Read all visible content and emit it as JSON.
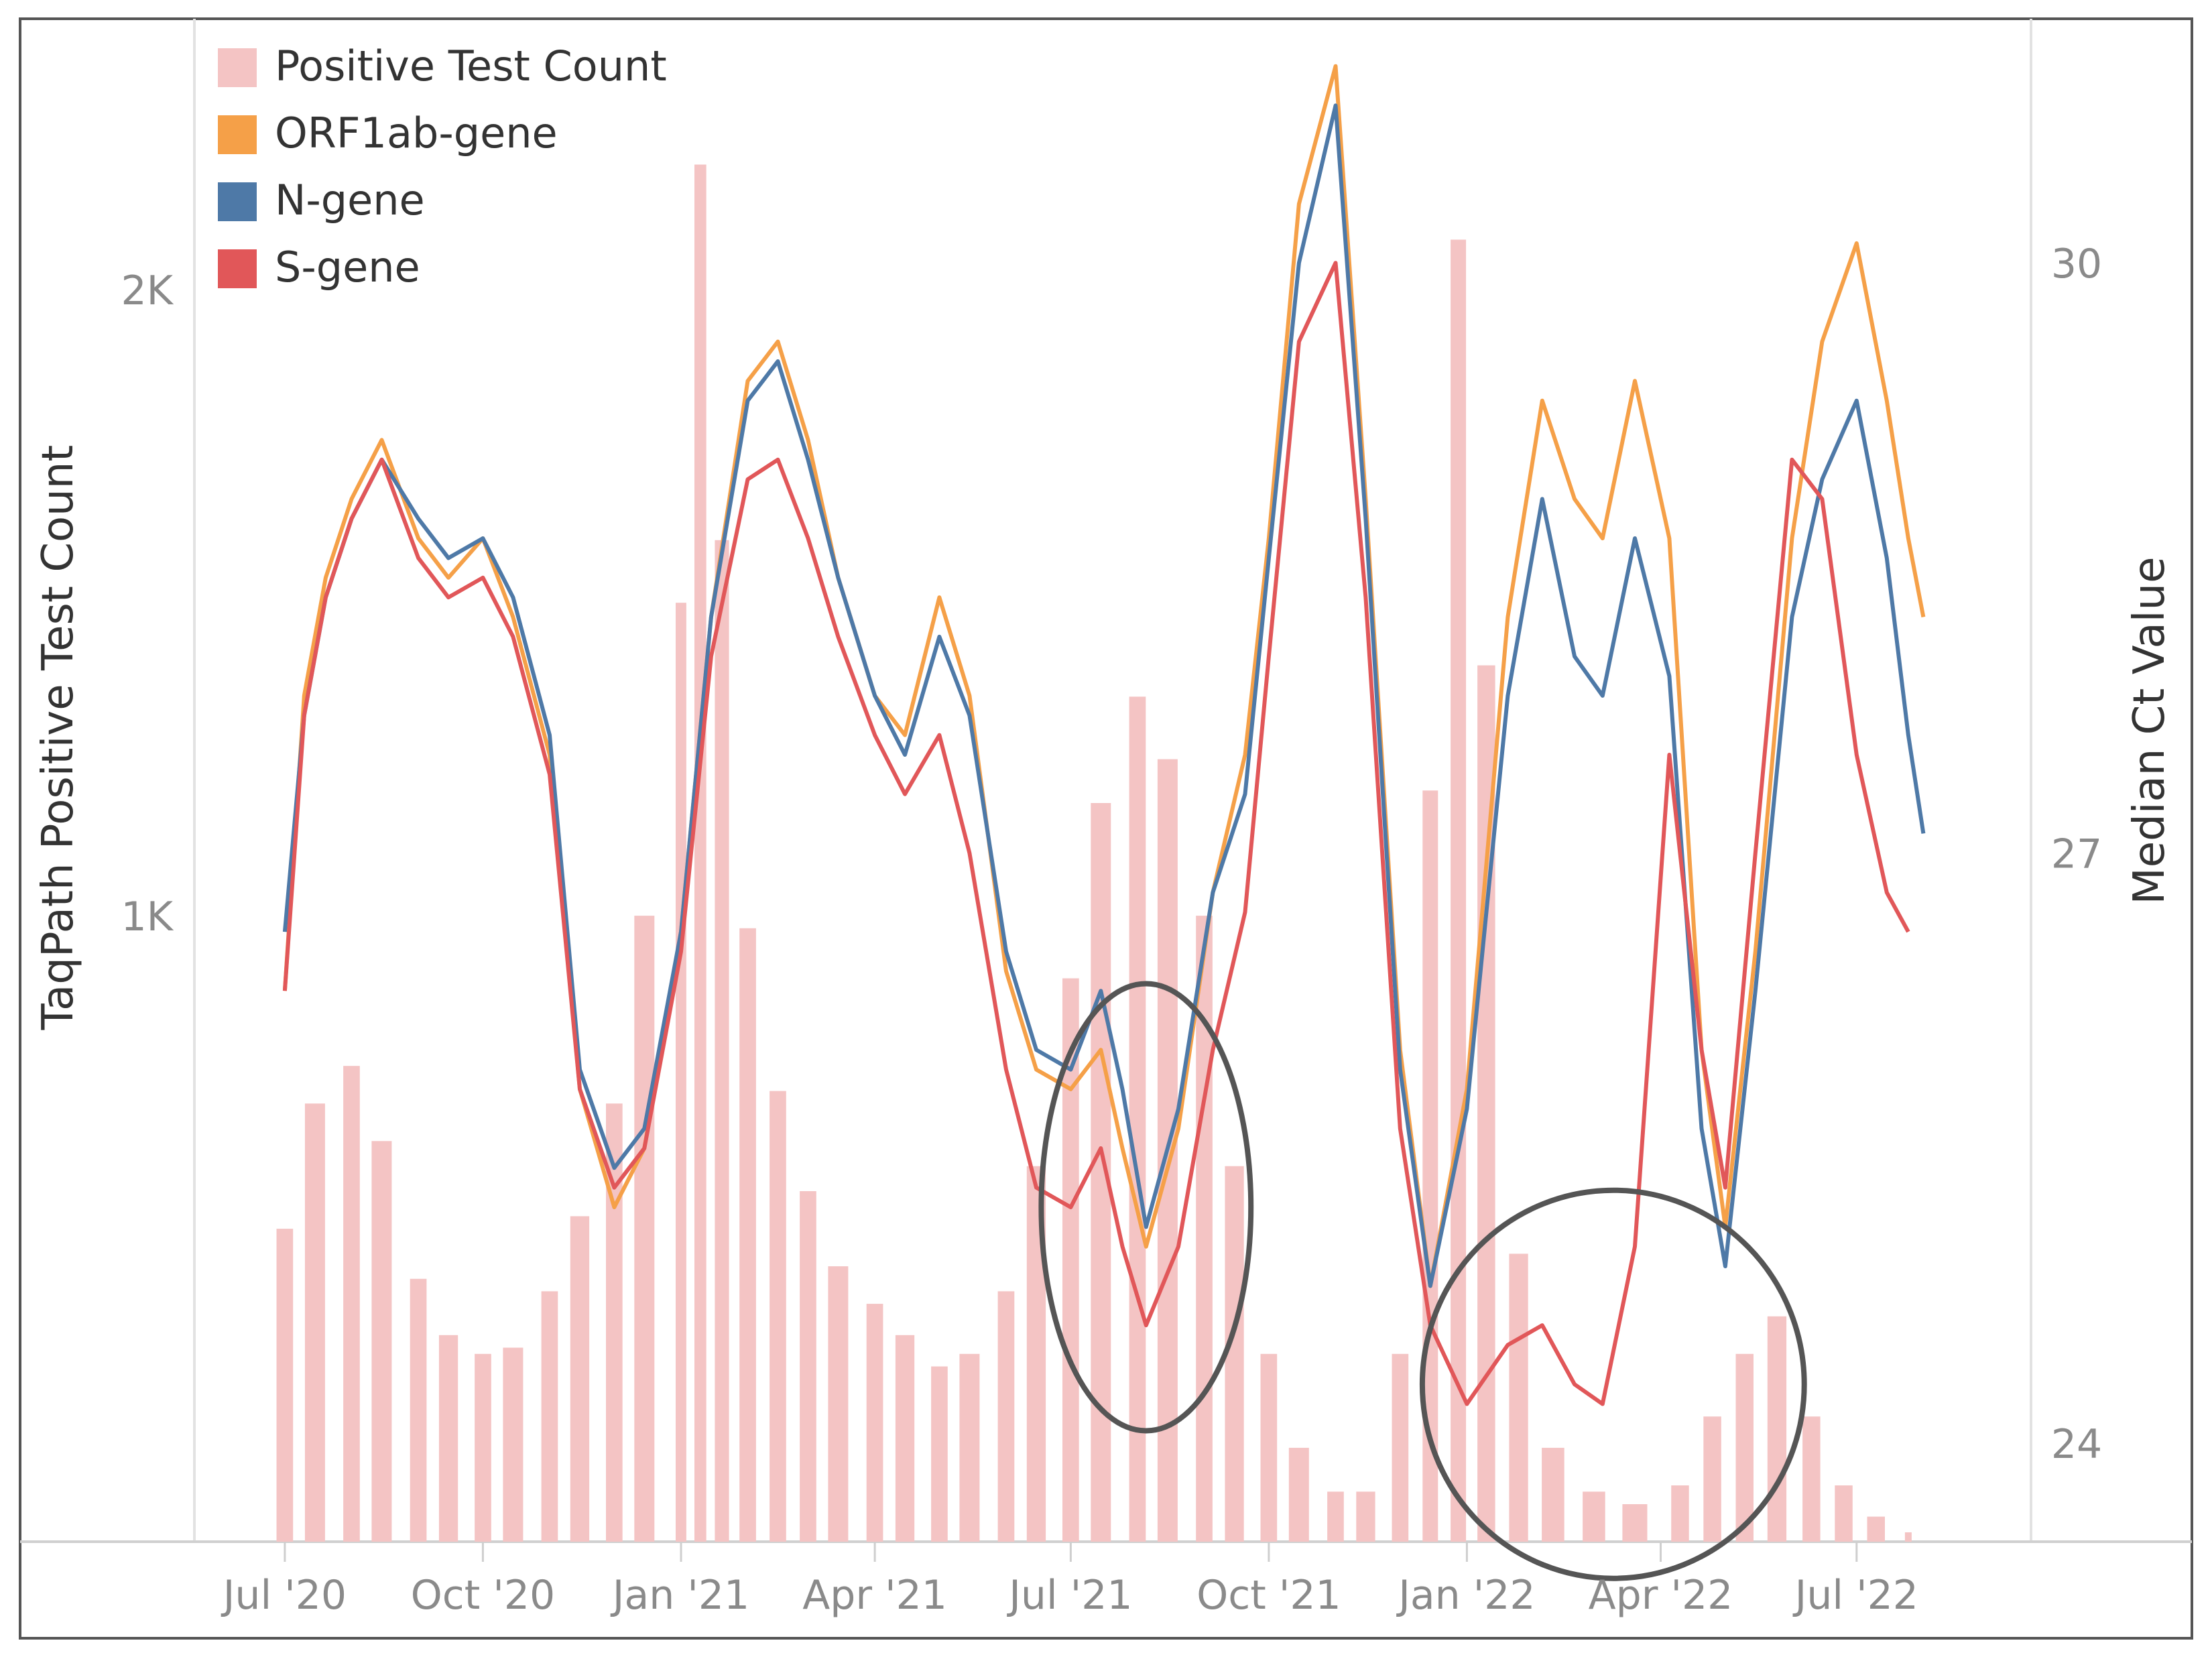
{
  "chart_data": {
    "type": "line",
    "title": "",
    "xlabel": "",
    "ylabel_left": "TaqPath Positive Test Count",
    "ylabel_right": "Median Ct Value",
    "x_ticks": [
      "Jul '20",
      "Oct '20",
      "Jan '21",
      "Apr '21",
      "Jul '21",
      "Oct '21",
      "Jan '22",
      "Apr '22",
      "Jul '22"
    ],
    "y_left_ticks": [
      {
        "value": 1000,
        "label": "1K"
      },
      {
        "value": 2000,
        "label": "2K"
      }
    ],
    "y_right_ticks": [
      {
        "value": 24,
        "label": "24"
      },
      {
        "value": 27,
        "label": "27"
      },
      {
        "value": 30,
        "label": "30"
      }
    ],
    "y_left_range": [
      0,
      2420
    ],
    "y_right_range": [
      23.5,
      31.2
    ],
    "x_range": [
      "2020-05-20",
      "2022-09-20"
    ],
    "grid": false,
    "legend_position": "top-left",
    "bar_series": {
      "name": "Positive Test Count",
      "color": "#f4c4c4",
      "points": [
        [
          "2020-07-01",
          500
        ],
        [
          "2020-07-15",
          700
        ],
        [
          "2020-08-01",
          760
        ],
        [
          "2020-08-15",
          640
        ],
        [
          "2020-09-01",
          420
        ],
        [
          "2020-09-15",
          330
        ],
        [
          "2020-10-01",
          300
        ],
        [
          "2020-10-15",
          310
        ],
        [
          "2020-11-01",
          400
        ],
        [
          "2020-11-15",
          520
        ],
        [
          "2020-12-01",
          700
        ],
        [
          "2020-12-15",
          1000
        ],
        [
          "2021-01-01",
          1500
        ],
        [
          "2021-01-10",
          2200
        ],
        [
          "2021-01-20",
          1600
        ],
        [
          "2021-02-01",
          980
        ],
        [
          "2021-02-15",
          720
        ],
        [
          "2021-03-01",
          560
        ],
        [
          "2021-03-15",
          440
        ],
        [
          "2021-04-01",
          380
        ],
        [
          "2021-04-15",
          330
        ],
        [
          "2021-05-01",
          280
        ],
        [
          "2021-05-15",
          300
        ],
        [
          "2021-06-01",
          400
        ],
        [
          "2021-06-15",
          600
        ],
        [
          "2021-07-01",
          900
        ],
        [
          "2021-07-15",
          1180
        ],
        [
          "2021-08-01",
          1350
        ],
        [
          "2021-08-15",
          1250
        ],
        [
          "2021-09-01",
          1000
        ],
        [
          "2021-09-15",
          600
        ],
        [
          "2021-10-01",
          300
        ],
        [
          "2021-10-15",
          150
        ],
        [
          "2021-11-01",
          80
        ],
        [
          "2021-11-15",
          80
        ],
        [
          "2021-12-01",
          300
        ],
        [
          "2021-12-15",
          1200
        ],
        [
          "2021-12-28",
          2080
        ],
        [
          "2022-01-10",
          1400
        ],
        [
          "2022-01-25",
          460
        ],
        [
          "2022-02-10",
          150
        ],
        [
          "2022-03-01",
          80
        ],
        [
          "2022-03-20",
          60
        ],
        [
          "2022-04-10",
          90
        ],
        [
          "2022-04-25",
          200
        ],
        [
          "2022-05-10",
          300
        ],
        [
          "2022-05-25",
          360
        ],
        [
          "2022-06-10",
          200
        ],
        [
          "2022-06-25",
          90
        ],
        [
          "2022-07-10",
          40
        ],
        [
          "2022-07-25",
          15
        ]
      ]
    },
    "series": [
      {
        "name": "ORF1ab-gene",
        "color": "#f5a048",
        "points": [
          [
            "2020-07-01",
            26.3
          ],
          [
            "2020-07-10",
            27.8
          ],
          [
            "2020-07-20",
            28.4
          ],
          [
            "2020-08-01",
            28.8
          ],
          [
            "2020-08-15",
            29.1
          ],
          [
            "2020-09-01",
            28.6
          ],
          [
            "2020-09-15",
            28.4
          ],
          [
            "2020-10-01",
            28.6
          ],
          [
            "2020-10-15",
            28.2
          ],
          [
            "2020-11-01",
            27.5
          ],
          [
            "2020-11-15",
            25.8
          ],
          [
            "2020-12-01",
            25.2
          ],
          [
            "2020-12-15",
            25.5
          ],
          [
            "2021-01-01",
            26.6
          ],
          [
            "2021-01-15",
            28.2
          ],
          [
            "2021-02-01",
            29.4
          ],
          [
            "2021-02-15",
            29.6
          ],
          [
            "2021-03-01",
            29.1
          ],
          [
            "2021-03-15",
            28.4
          ],
          [
            "2021-04-01",
            27.8
          ],
          [
            "2021-04-15",
            27.6
          ],
          [
            "2021-05-01",
            28.3
          ],
          [
            "2021-05-15",
            27.8
          ],
          [
            "2021-06-01",
            26.4
          ],
          [
            "2021-06-15",
            25.9
          ],
          [
            "2021-07-01",
            25.8
          ],
          [
            "2021-07-15",
            26.0
          ],
          [
            "2021-07-25",
            25.5
          ],
          [
            "2021-08-05",
            25.0
          ],
          [
            "2021-08-20",
            25.6
          ],
          [
            "2021-09-05",
            26.8
          ],
          [
            "2021-09-20",
            27.5
          ],
          [
            "2021-10-01",
            28.6
          ],
          [
            "2021-10-15",
            30.3
          ],
          [
            "2021-11-01",
            31.0
          ],
          [
            "2021-11-15",
            28.8
          ],
          [
            "2021-12-01",
            26.0
          ],
          [
            "2021-12-15",
            24.8
          ],
          [
            "2022-01-01",
            25.8
          ],
          [
            "2022-01-20",
            28.2
          ],
          [
            "2022-02-05",
            29.3
          ],
          [
            "2022-02-20",
            28.8
          ],
          [
            "2022-03-05",
            28.6
          ],
          [
            "2022-03-20",
            29.4
          ],
          [
            "2022-04-05",
            28.6
          ],
          [
            "2022-04-20",
            26.0
          ],
          [
            "2022-05-01",
            25.1
          ],
          [
            "2022-05-15",
            26.5
          ],
          [
            "2022-06-01",
            28.6
          ],
          [
            "2022-06-15",
            29.6
          ],
          [
            "2022-07-01",
            30.1
          ],
          [
            "2022-07-15",
            29.3
          ],
          [
            "2022-07-25",
            28.6
          ],
          [
            "2022-08-01",
            28.2
          ]
        ]
      },
      {
        "name": "N-gene",
        "color": "#4e79a7",
        "points": [
          [
            "2020-07-01",
            26.6
          ],
          [
            "2020-07-10",
            27.7
          ],
          [
            "2020-07-20",
            28.3
          ],
          [
            "2020-08-01",
            28.7
          ],
          [
            "2020-08-15",
            29.0
          ],
          [
            "2020-09-01",
            28.7
          ],
          [
            "2020-09-15",
            28.5
          ],
          [
            "2020-10-01",
            28.6
          ],
          [
            "2020-10-15",
            28.3
          ],
          [
            "2020-11-01",
            27.6
          ],
          [
            "2020-11-15",
            25.9
          ],
          [
            "2020-12-01",
            25.4
          ],
          [
            "2020-12-15",
            25.6
          ],
          [
            "2021-01-01",
            26.6
          ],
          [
            "2021-01-15",
            28.2
          ],
          [
            "2021-02-01",
            29.3
          ],
          [
            "2021-02-15",
            29.5
          ],
          [
            "2021-03-01",
            29.0
          ],
          [
            "2021-03-15",
            28.4
          ],
          [
            "2021-04-01",
            27.8
          ],
          [
            "2021-04-15",
            27.5
          ],
          [
            "2021-05-01",
            28.1
          ],
          [
            "2021-05-15",
            27.7
          ],
          [
            "2021-06-01",
            26.5
          ],
          [
            "2021-06-15",
            26.0
          ],
          [
            "2021-07-01",
            25.9
          ],
          [
            "2021-07-15",
            26.3
          ],
          [
            "2021-07-25",
            25.8
          ],
          [
            "2021-08-05",
            25.1
          ],
          [
            "2021-08-20",
            25.7
          ],
          [
            "2021-09-05",
            26.8
          ],
          [
            "2021-09-20",
            27.3
          ],
          [
            "2021-10-01",
            28.5
          ],
          [
            "2021-10-15",
            30.0
          ],
          [
            "2021-11-01",
            30.8
          ],
          [
            "2021-11-15",
            28.7
          ],
          [
            "2021-12-01",
            25.9
          ],
          [
            "2021-12-15",
            24.8
          ],
          [
            "2022-01-01",
            25.7
          ],
          [
            "2022-01-20",
            27.8
          ],
          [
            "2022-02-05",
            28.8
          ],
          [
            "2022-02-20",
            28.0
          ],
          [
            "2022-03-05",
            27.8
          ],
          [
            "2022-03-20",
            28.6
          ],
          [
            "2022-04-05",
            27.9
          ],
          [
            "2022-04-20",
            25.6
          ],
          [
            "2022-05-01",
            24.9
          ],
          [
            "2022-05-15",
            26.3
          ],
          [
            "2022-06-01",
            28.2
          ],
          [
            "2022-06-15",
            28.9
          ],
          [
            "2022-07-01",
            29.3
          ],
          [
            "2022-07-15",
            28.5
          ],
          [
            "2022-07-25",
            27.6
          ],
          [
            "2022-08-01",
            27.1
          ]
        ]
      },
      {
        "name": "S-gene",
        "color": "#e15759",
        "points": [
          [
            "2020-07-01",
            26.3
          ],
          [
            "2020-07-10",
            27.7
          ],
          [
            "2020-07-20",
            28.3
          ],
          [
            "2020-08-01",
            28.7
          ],
          [
            "2020-08-15",
            29.0
          ],
          [
            "2020-09-01",
            28.5
          ],
          [
            "2020-09-15",
            28.3
          ],
          [
            "2020-10-01",
            28.4
          ],
          [
            "2020-10-15",
            28.1
          ],
          [
            "2020-11-01",
            27.4
          ],
          [
            "2020-11-15",
            25.8
          ],
          [
            "2020-12-01",
            25.3
          ],
          [
            "2020-12-15",
            25.5
          ],
          [
            "2021-01-01",
            26.5
          ],
          [
            "2021-01-15",
            28.0
          ],
          [
            "2021-02-01",
            28.9
          ],
          [
            "2021-02-15",
            29.0
          ],
          [
            "2021-03-01",
            28.6
          ],
          [
            "2021-03-15",
            28.1
          ],
          [
            "2021-04-01",
            27.6
          ],
          [
            "2021-04-15",
            27.3
          ],
          [
            "2021-05-01",
            27.6
          ],
          [
            "2021-05-15",
            27.0
          ],
          [
            "2021-06-01",
            25.9
          ],
          [
            "2021-06-15",
            25.3
          ],
          [
            "2021-07-01",
            25.2
          ],
          [
            "2021-07-15",
            25.5
          ],
          [
            "2021-07-25",
            25.0
          ],
          [
            "2021-08-05",
            24.6
          ],
          [
            "2021-08-20",
            25.0
          ],
          [
            "2021-09-05",
            26.0
          ],
          [
            "2021-09-20",
            26.7
          ],
          [
            "2021-10-01",
            28.0
          ],
          [
            "2021-10-15",
            29.6
          ],
          [
            "2021-11-01",
            30.0
          ],
          [
            "2021-11-15",
            28.3
          ],
          [
            "2021-12-01",
            25.6
          ],
          [
            "2021-12-15",
            24.6
          ],
          [
            "2022-01-01",
            24.2
          ],
          [
            "2022-01-20",
            24.5
          ],
          [
            "2022-02-05",
            24.6
          ],
          [
            "2022-02-20",
            24.3
          ],
          [
            "2022-03-05",
            24.2
          ],
          [
            "2022-03-20",
            25.0
          ],
          [
            "2022-04-05",
            27.5
          ],
          [
            "2022-04-20",
            26.0
          ],
          [
            "2022-05-01",
            25.3
          ],
          [
            "2022-05-15",
            27.0
          ],
          [
            "2022-06-01",
            29.0
          ],
          [
            "2022-06-15",
            28.8
          ],
          [
            "2022-07-01",
            27.5
          ],
          [
            "2022-07-15",
            26.8
          ],
          [
            "2022-07-25",
            26.6
          ]
        ]
      }
    ],
    "annotations": [
      {
        "shape": "ellipse",
        "center": [
          "2021-08-05",
          25.2
        ],
        "span_days": 60,
        "span_ct": 2.0
      },
      {
        "shape": "ellipse",
        "center": [
          "2022-03-10",
          24.3
        ],
        "span_days": 140,
        "span_ct": 1.7
      }
    ]
  }
}
